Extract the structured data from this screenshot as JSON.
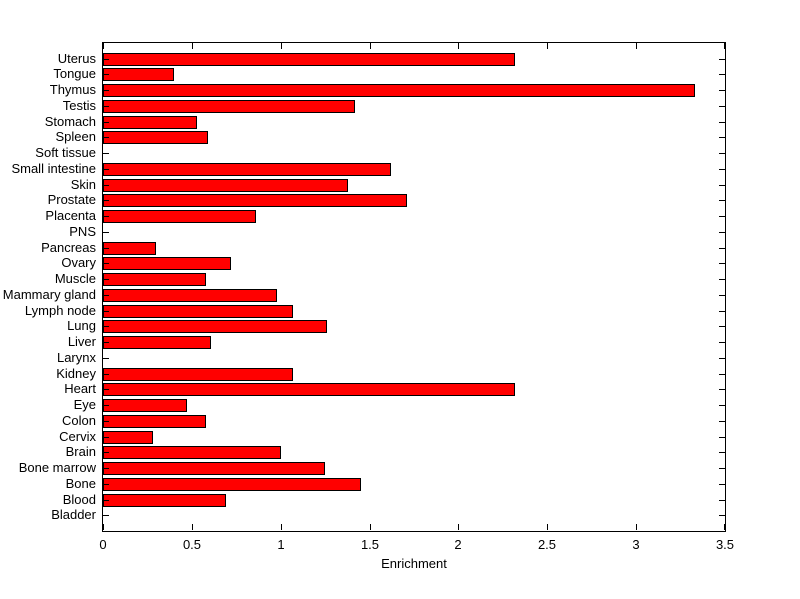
{
  "chart_data": {
    "type": "bar",
    "orientation": "horizontal",
    "title": "",
    "xlabel": "Enrichment",
    "ylabel": "",
    "xlim": [
      0,
      3.5
    ],
    "xticks": [
      0,
      0.5,
      1,
      1.5,
      2,
      2.5,
      3,
      3.5
    ],
    "grid": false,
    "legend": "none",
    "categories": [
      "Uterus",
      "Tongue",
      "Thymus",
      "Testis",
      "Stomach",
      "Spleen",
      "Soft tissue",
      "Small intestine",
      "Skin",
      "Prostate",
      "Placenta",
      "PNS",
      "Pancreas",
      "Ovary",
      "Muscle",
      "Mammary gland",
      "Lymph node",
      "Lung",
      "Liver",
      "Larynx",
      "Kidney",
      "Heart",
      "Eye",
      "Colon",
      "Cervix",
      "Brain",
      "Bone marrow",
      "Bone",
      "Blood",
      "Bladder"
    ],
    "values": [
      2.32,
      0.4,
      3.33,
      1.42,
      0.53,
      0.59,
      0,
      1.62,
      1.38,
      1.71,
      0.86,
      0,
      0.3,
      0.72,
      0.58,
      0.98,
      1.07,
      1.26,
      0.61,
      0,
      1.07,
      2.32,
      0.47,
      0.58,
      0.28,
      1.0,
      1.25,
      1.45,
      0.69,
      0
    ],
    "colors": {
      "bar_fill": "#ff0000",
      "bar_edge": "#000000",
      "axis": "#000000",
      "background": "#ffffff",
      "text": "#000000"
    }
  }
}
